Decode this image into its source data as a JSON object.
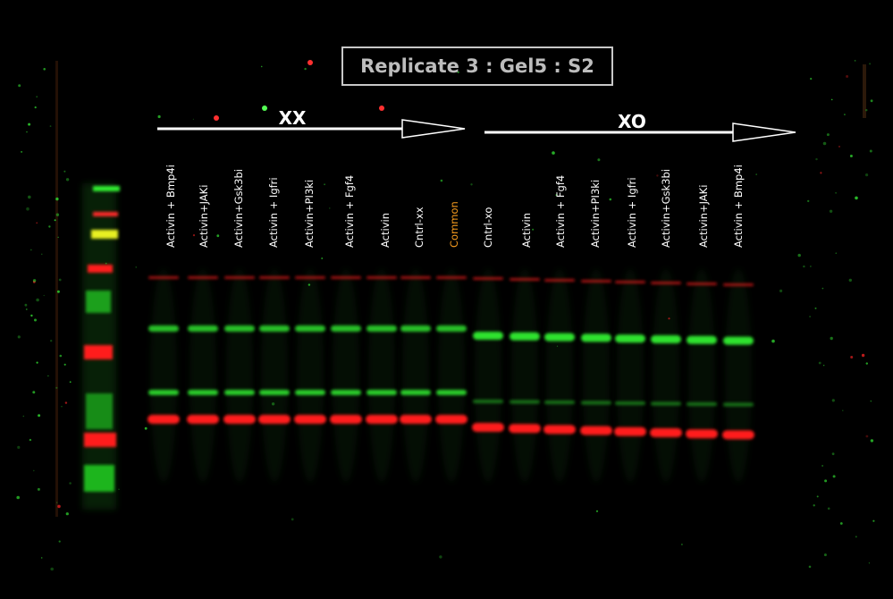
{
  "title": "Replicate 3 : Gel5 : S2",
  "groups": [
    {
      "label": "XX"
    },
    {
      "label": "XO"
    }
  ],
  "lanes": [
    {
      "label": "Activin + Bmp4i"
    },
    {
      "label": "Activin+JAKi"
    },
    {
      "label": "Activin+Gsk3bi"
    },
    {
      "label": "Activin + Igfri"
    },
    {
      "label": "Activin+PI3ki"
    },
    {
      "label": "Activin + Fgf4"
    },
    {
      "label": "Activin"
    },
    {
      "label": "Cntrl-xx"
    },
    {
      "label": "Common",
      "color": "#f59a1e"
    },
    {
      "label": "Cntrl-xo"
    },
    {
      "label": "Activin"
    },
    {
      "label": "Activin + Fgf4"
    },
    {
      "label": "Activin+PI3ki"
    },
    {
      "label": "Activin + Igfri"
    },
    {
      "label": "Activin+Gsk3bi"
    },
    {
      "label": "Activin+JAKi"
    },
    {
      "label": "Activin + Bmp4i"
    }
  ],
  "colors": {
    "background": "#000000",
    "band_red": "#ff1a1a",
    "band_green": "#33ee33",
    "band_yellow": "#e8f020",
    "label_highlight": "#f59a1e",
    "title_text": "#bdbdbd"
  }
}
